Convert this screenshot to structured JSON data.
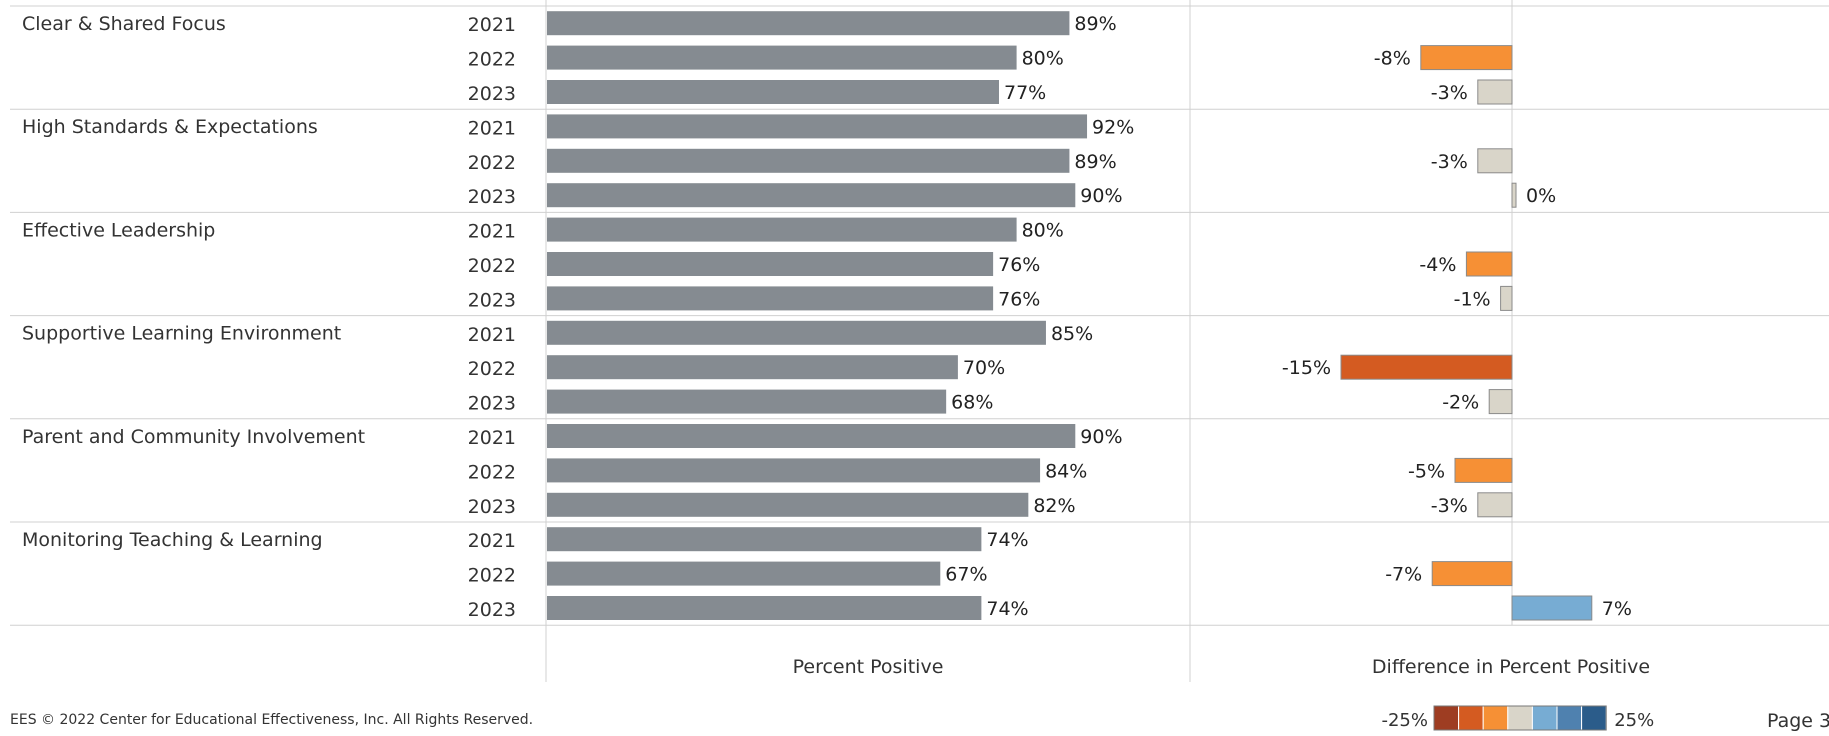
{
  "chart_data": {
    "type": "bar",
    "panels": [
      "Percent Positive",
      "Difference in Percent Positive"
    ],
    "groups": [
      {
        "name": "Clear & Shared Focus",
        "years": [
          "2021",
          "2022",
          "2023"
        ],
        "percent_positive": [
          89,
          80,
          77
        ],
        "difference": [
          null,
          -8,
          -3
        ]
      },
      {
        "name": "High Standards & Expectations",
        "years": [
          "2021",
          "2022",
          "2023"
        ],
        "percent_positive": [
          92,
          89,
          90
        ],
        "difference": [
          null,
          -3,
          0
        ]
      },
      {
        "name": "Effective Leadership",
        "years": [
          "2021",
          "2022",
          "2023"
        ],
        "percent_positive": [
          80,
          76,
          76
        ],
        "difference": [
          null,
          -4,
          -1
        ]
      },
      {
        "name": "Supportive Learning Environment",
        "years": [
          "2021",
          "2022",
          "2023"
        ],
        "percent_positive": [
          85,
          70,
          68
        ],
        "difference": [
          null,
          -15,
          -2
        ]
      },
      {
        "name": "Parent and Community Involvement",
        "years": [
          "2021",
          "2022",
          "2023"
        ],
        "percent_positive": [
          90,
          84,
          82
        ],
        "difference": [
          null,
          -5,
          -3
        ]
      },
      {
        "name": "Monitoring Teaching & Learning",
        "years": [
          "2021",
          "2022",
          "2023"
        ],
        "percent_positive": [
          74,
          67,
          74
        ],
        "difference": [
          null,
          -7,
          7
        ]
      }
    ],
    "difference_scale": {
      "min": -25,
      "max": 25,
      "min_label": "-25%",
      "max_label": "25%"
    },
    "colors": {
      "bar": "#858b91",
      "diff_scale": [
        "#9e3d22",
        "#d45b21",
        "#f69035",
        "#d9d5c9",
        "#77acd3",
        "#4f81af",
        "#2b5c8a"
      ]
    }
  },
  "footer": {
    "copyright": "EES © 2022 Center for Educational Effectiveness, Inc. All Rights Reserved."
  },
  "page_label": "Page 3"
}
